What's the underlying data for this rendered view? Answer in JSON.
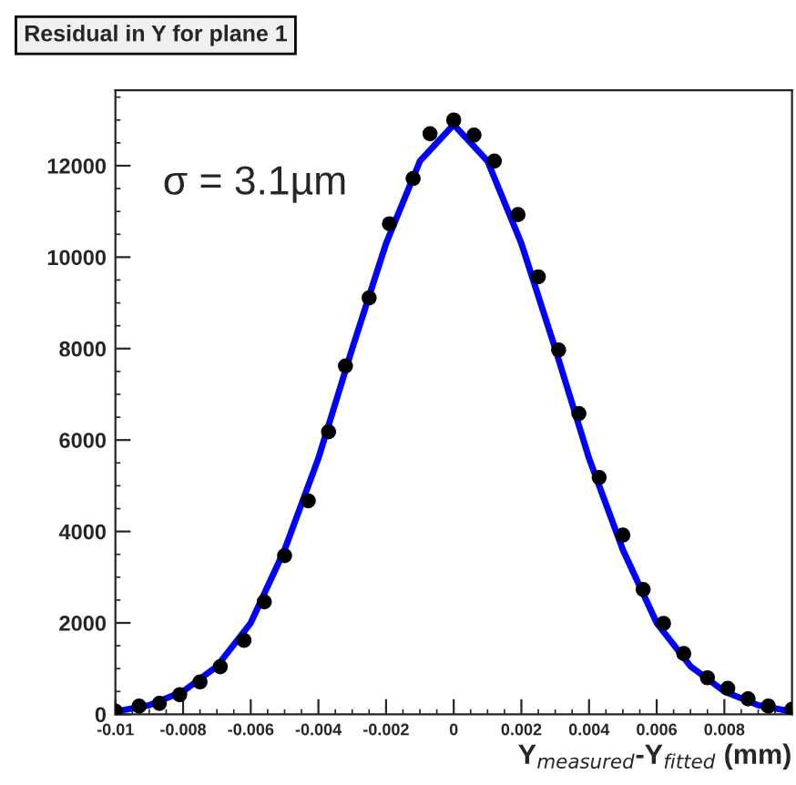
{
  "chart_data": {
    "type": "scatter",
    "title": "Residual in Y for plane 1",
    "xlabel": "Y$_{measured}$-Y$_{fitted}$ (mm)",
    "annotations": [
      "σ = 3.1µm"
    ],
    "xlim": [
      -0.01,
      0.01
    ],
    "ylim": [
      0,
      13650
    ],
    "xticks": [
      -0.01,
      -0.008,
      -0.006,
      -0.004,
      -0.002,
      0,
      0.002,
      0.004,
      0.006,
      0.008
    ],
    "yticks": [
      0,
      2000,
      4000,
      6000,
      8000,
      10000,
      12000
    ],
    "grid": false,
    "legend": false,
    "marker": "circle",
    "series": [
      {
        "color": "#000000",
        "x": [
          -0.01,
          -0.0093,
          -0.0087,
          -0.0081,
          -0.0075,
          -0.0069,
          -0.0062,
          -0.0056,
          -0.005,
          -0.0043,
          -0.0037,
          -0.0032,
          -0.0025,
          -0.0019,
          -0.0012,
          -0.0007,
          0,
          0.0006,
          0.0012,
          0.0019,
          0.0025,
          0.0031,
          0.0037,
          0.0043,
          0.005,
          0.0056,
          0.0062,
          0.0068,
          0.0075,
          0.0081,
          0.0087,
          0.0093,
          0.01
        ],
        "values": [
          70,
          180,
          240,
          430,
          710,
          1040,
          1620,
          2460,
          3470,
          4670,
          6180,
          7620,
          9110,
          10730,
          11720,
          12700,
          13000,
          12670,
          12100,
          10930,
          9570,
          7970,
          6580,
          5180,
          3920,
          2730,
          1990,
          1330,
          800,
          570,
          340,
          180,
          110
        ]
      },
      {
        "type": "line",
        "color": "#0000ff",
        "line_style": "solid",
        "marker": "none",
        "x": [
          -0.01,
          -0.009,
          -0.008,
          -0.007,
          -0.006,
          -0.005,
          -0.004,
          -0.003,
          -0.002,
          -0.001,
          0,
          0.001,
          0.002,
          0.003,
          0.004,
          0.005,
          0.006,
          0.007,
          0.008,
          0.009,
          0.01
        ],
        "values": [
          60,
          200,
          500,
          1050,
          2000,
          3600,
          5600,
          8000,
          10300,
          12100,
          12900,
          12100,
          10300,
          8000,
          5600,
          3600,
          2000,
          1050,
          500,
          200,
          60
        ]
      }
    ]
  }
}
